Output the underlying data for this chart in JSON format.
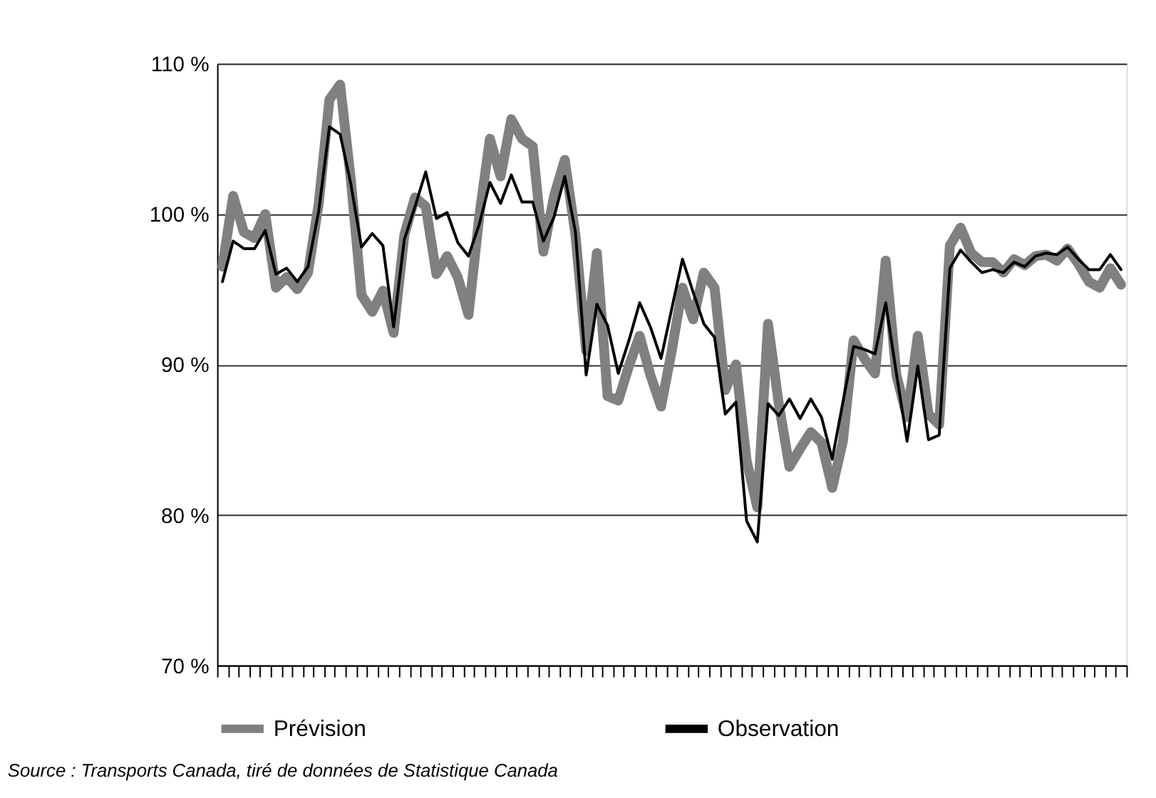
{
  "chart_data": {
    "type": "line",
    "categories": [
      null,
      null,
      null,
      null,
      null,
      null,
      null,
      null,
      null,
      null,
      null,
      null,
      null,
      null,
      null,
      null,
      null,
      null,
      null,
      null,
      null,
      null,
      null,
      null,
      null,
      null,
      null,
      null,
      null,
      null,
      null,
      null,
      null,
      null,
      null,
      null,
      null,
      null,
      null,
      null,
      null,
      null,
      null,
      null,
      null,
      null,
      null,
      null,
      null,
      null,
      null,
      null,
      null,
      null,
      null,
      null,
      null,
      null,
      null,
      null,
      null,
      null,
      null,
      null,
      null,
      null,
      null,
      null,
      null,
      null,
      null,
      null,
      null,
      null,
      null,
      null,
      null,
      null,
      null,
      null,
      null,
      null,
      null,
      null,
      null
    ],
    "series": [
      {
        "name": "Prévision",
        "color": "#808080",
        "values": [
          96.5,
          101.2,
          98.8,
          98.4,
          100.0,
          95.1,
          95.8,
          95.0,
          96.1,
          100.7,
          107.6,
          108.6,
          102.3,
          94.6,
          93.5,
          94.9,
          92.1,
          98.6,
          101.1,
          100.5,
          96.0,
          97.2,
          95.8,
          93.3,
          99.8,
          105.0,
          102.5,
          106.3,
          105.0,
          104.5,
          97.5,
          101.2,
          103.6,
          98.6,
          90.9,
          97.4,
          87.9,
          87.6,
          89.9,
          91.9,
          89.3,
          87.2,
          90.9,
          95.1,
          93.0,
          96.1,
          95.1,
          88.3,
          90.0,
          83.6,
          80.5,
          92.7,
          87.4,
          83.2,
          84.4,
          85.5,
          84.8,
          81.8,
          84.9,
          91.6,
          90.4,
          89.4,
          96.9,
          89.3,
          86.5,
          91.9,
          86.7,
          86.0,
          97.9,
          99.1,
          97.4,
          96.8,
          96.8,
          96.1,
          97.0,
          96.6,
          97.2,
          97.3,
          96.9,
          97.7,
          96.7,
          95.5,
          95.1,
          96.4,
          95.3
        ]
      },
      {
        "name": "Observation",
        "color": "#000000",
        "values": [
          95.5,
          98.2,
          97.7,
          97.7,
          98.9,
          96.0,
          96.4,
          95.5,
          96.5,
          100.2,
          105.8,
          105.3,
          102.0,
          97.8,
          98.7,
          97.9,
          92.5,
          98.3,
          100.5,
          102.8,
          99.7,
          100.1,
          98.1,
          97.2,
          99.3,
          102.1,
          100.7,
          102.6,
          100.8,
          100.8,
          98.2,
          99.8,
          102.5,
          98.8,
          89.3,
          94.0,
          92.6,
          89.4,
          91.6,
          94.1,
          92.5,
          90.4,
          93.7,
          97.0,
          94.8,
          92.7,
          91.8,
          86.7,
          87.5,
          79.6,
          78.2,
          87.4,
          86.6,
          87.7,
          86.4,
          87.7,
          86.5,
          83.7,
          87.5,
          91.2,
          91.0,
          90.7,
          94.1,
          89.4,
          84.9,
          89.9,
          85.0,
          85.3,
          96.4,
          97.6,
          96.8,
          96.1,
          96.3,
          96.1,
          96.8,
          96.5,
          97.2,
          97.4,
          97.3,
          97.8,
          97.0,
          96.3,
          96.3,
          97.3,
          96.3
        ]
      }
    ],
    "ylim": [
      70,
      110
    ],
    "yticks": [
      {
        "value": 70,
        "label": "70 %"
      },
      {
        "value": 80,
        "label": "80 %"
      },
      {
        "value": 90,
        "label": "90 %"
      },
      {
        "value": 100,
        "label": "100 %"
      },
      {
        "value": 110,
        "label": "110 %"
      }
    ],
    "grid": "y",
    "legend": "bottom",
    "tick_labels": "y",
    "marker": "none",
    "line_style": "solid",
    "annotations": [
      "Source : Transports Canada, tiré de données de Statistique Canada"
    ]
  }
}
